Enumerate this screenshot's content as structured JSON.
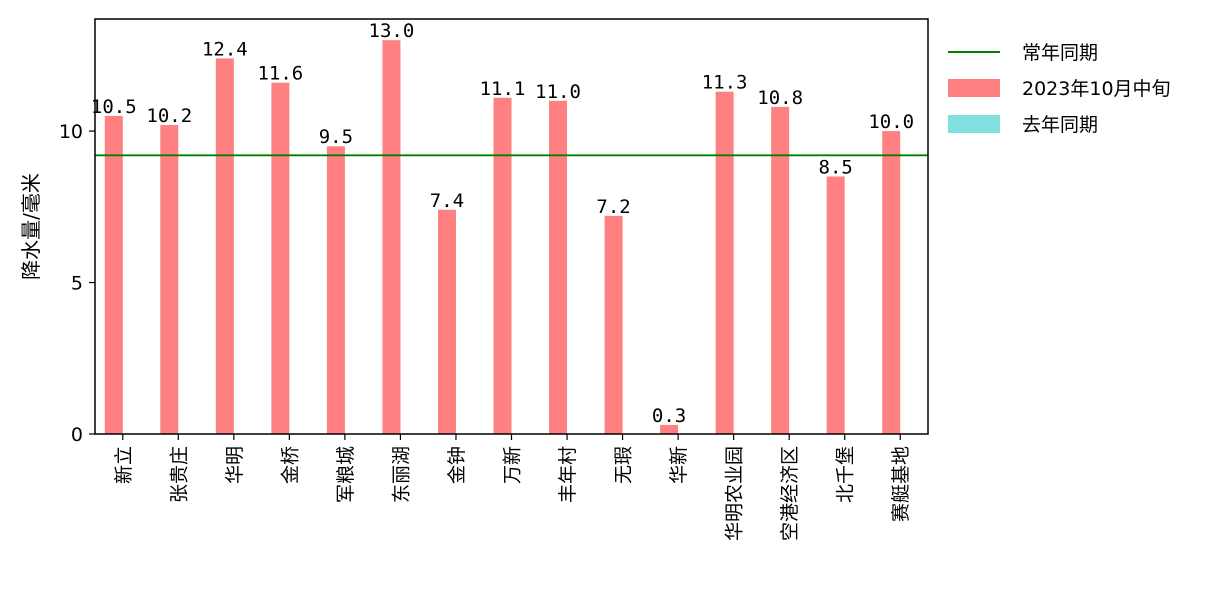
{
  "chart_data": {
    "type": "bar",
    "categories": [
      "新立",
      "张贵庄",
      "华明",
      "金桥",
      "军粮城",
      "东丽湖",
      "金钟",
      "万新",
      "丰年村",
      "无瑕",
      "华新",
      "华明农业园",
      "空港经济区",
      "北千堡",
      "赛艇基地"
    ],
    "series": [
      {
        "name": "2023年10月中旬",
        "color": "#ff8080",
        "values": [
          10.5,
          10.2,
          12.4,
          11.6,
          9.5,
          13.0,
          7.4,
          11.1,
          11.0,
          7.2,
          0.3,
          11.3,
          10.8,
          8.5,
          10.0
        ],
        "labels": [
          "10.5",
          "10.2",
          "12.4",
          "11.6",
          "9.5",
          "13.0",
          "7.4",
          "11.1",
          "11.0",
          "7.2",
          "0.3",
          "11.3",
          "10.8",
          "8.5",
          "10.0"
        ]
      },
      {
        "name": "去年同期",
        "color": "#80dfdf",
        "values": [
          0,
          0,
          0,
          0,
          0,
          0,
          0,
          0,
          0,
          0,
          0,
          0,
          0,
          0,
          0
        ]
      }
    ],
    "reference_line": {
      "name": "常年同期",
      "value": 9.2,
      "color": "#008000"
    },
    "ylabel": "降水量/毫米",
    "xlabel": "",
    "ylim": [
      0,
      13.7
    ],
    "yticks": [
      0,
      5,
      10
    ],
    "ytick_labels": [
      "0",
      "5",
      "10"
    ],
    "grid": false,
    "legend": {
      "location": "upper-right-outside",
      "entries": [
        {
          "label": "常年同期",
          "kind": "line",
          "color": "#008000"
        },
        {
          "label": "2023年10月中旬",
          "kind": "patch",
          "color": "#ff8080"
        },
        {
          "label": "去年同期",
          "kind": "patch",
          "color": "#80dfdf"
        }
      ]
    }
  }
}
